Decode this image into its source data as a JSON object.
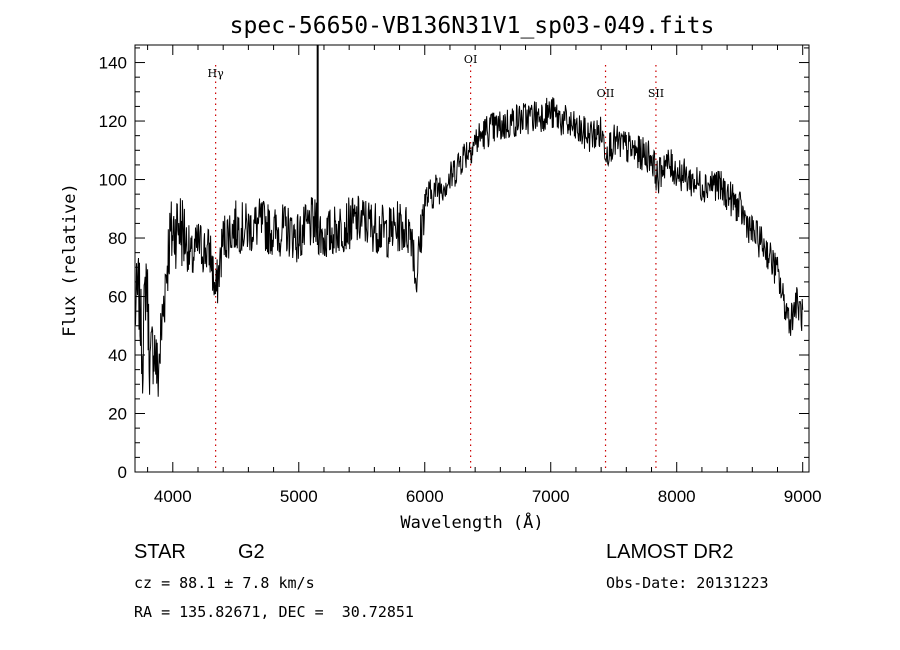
{
  "chart_data": {
    "type": "line",
    "title": "spec-56650-VB136N31V1_sp03-049.fits",
    "xlabel": "Wavelength (Å)",
    "ylabel": "Flux (relative)",
    "xlim": [
      3700,
      9050
    ],
    "ylim": [
      0,
      146
    ],
    "xticks": [
      4000,
      5000,
      6000,
      7000,
      8000,
      9000
    ],
    "yticks": [
      0,
      20,
      40,
      60,
      80,
      100,
      120,
      140
    ],
    "grid": false,
    "line_color": "#000000",
    "marker_color": "#cc0000",
    "series": [
      {
        "x": [
          3700,
          3730,
          3760,
          3790,
          3820,
          3850,
          3880,
          3910,
          3940,
          3970,
          4000,
          4050,
          4100,
          4150,
          4200,
          4250,
          4300,
          4340,
          4400,
          4450,
          4500,
          4600,
          4700,
          4800,
          4900,
          5000,
          5100,
          5140,
          5200,
          5300,
          5400,
          5500,
          5600,
          5700,
          5800,
          5900,
          5930,
          6000,
          6100,
          6200,
          6300,
          6400,
          6500,
          6600,
          6700,
          6800,
          6900,
          7000,
          7100,
          7200,
          7300,
          7400,
          7440,
          7500,
          7600,
          7700,
          7800,
          7850,
          7900,
          8000,
          8100,
          8200,
          8300,
          8400,
          8500,
          8600,
          8700,
          8800,
          8850,
          8900,
          8950,
          9000
        ],
        "y": [
          55,
          62,
          40,
          70,
          35,
          45,
          32,
          48,
          65,
          78,
          82,
          85,
          80,
          72,
          78,
          76,
          75,
          60,
          80,
          82,
          84,
          83,
          85,
          82,
          83,
          80,
          85,
          84,
          80,
          83,
          85,
          86,
          84,
          82,
          84,
          82,
          65,
          93,
          97,
          100,
          108,
          113,
          117,
          118,
          120,
          121,
          122,
          123,
          120,
          117,
          115,
          116,
          110,
          113,
          111,
          109,
          108,
          100,
          106,
          103,
          100,
          98,
          99,
          95,
          90,
          82,
          77,
          68,
          58,
          52,
          58,
          53
        ]
      }
    ],
    "spikes": [
      {
        "x": 5150,
        "y_top": 146
      }
    ],
    "annotations": [
      {
        "label": "Hγ",
        "x": 4340
      },
      {
        "label": "OI",
        "x": 6364
      },
      {
        "label": "OII",
        "x": 7435
      },
      {
        "label": "SII",
        "x": 7835
      }
    ]
  },
  "info": {
    "object_type": "STAR",
    "subclass": "G2",
    "cz": "cz = 88.1 ± 7.8 km/s",
    "coords": "RA = 135.82671, DEC =  30.72851",
    "survey": "LAMOST DR2",
    "obs_date": "Obs-Date: 20131223"
  }
}
